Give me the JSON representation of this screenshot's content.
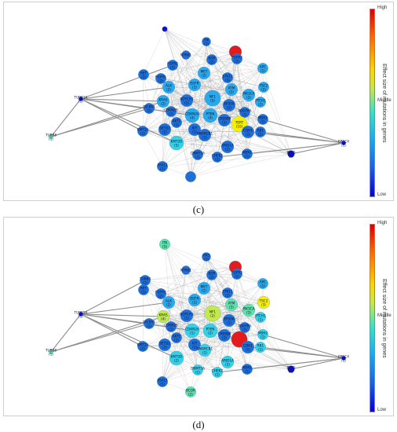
{
  "colors": {
    "blue": "#1f6fd8",
    "lightblue": "#2aa8ea",
    "cyan": "#35d0e6",
    "green": "#5ee0a8",
    "lime": "#c3ea4a",
    "yellow": "#f6f000",
    "red": "#e51a1a",
    "navy": "#1010c8",
    "edge": "#9a9a9a"
  },
  "colorbar": {
    "high_label": "High",
    "middle_label": "Middle",
    "low_label": "Low",
    "title": "Effect size of mutations in genes"
  },
  "panels": [
    {
      "label": "(c)",
      "nodes": [
        {
          "gene": "TUBB1A",
          "count": "(1)",
          "color": "navy",
          "size": 1.5
        },
        {
          "gene": "TUBB8",
          "count": "(1)",
          "color": "green",
          "size": 1.5
        },
        {
          "gene": "ERCC4",
          "count": "(1)",
          "color": "navy",
          "size": 1.5
        },
        {
          "gene": "",
          "count": "",
          "color": "navy",
          "size": 2
        },
        {
          "gene": "NTRK1",
          "count": "",
          "color": "blue",
          "size": 4
        },
        {
          "gene": "ITK",
          "count": "(1)",
          "color": "blue",
          "size": 4
        },
        {
          "gene": "KDR",
          "count": "(2)",
          "color": "blue",
          "size": 5
        },
        {
          "gene": "",
          "count": "",
          "color": "red",
          "size": 6
        },
        {
          "gene": "FGFR3",
          "count": "(2)",
          "color": "blue",
          "size": 5
        },
        {
          "gene": "APC",
          "count": "(1)",
          "color": "lightblue",
          "size": 5
        },
        {
          "gene": "FGFR2",
          "count": "(1)",
          "color": "blue",
          "size": 5
        },
        {
          "gene": "MET",
          "count": "(2)",
          "color": "lightblue",
          "size": 6
        },
        {
          "gene": "STK11",
          "count": "(1)",
          "color": "blue",
          "size": 5
        },
        {
          "gene": "TSC2",
          "count": "(2)",
          "color": "lightblue",
          "size": 5
        },
        {
          "gene": "RET",
          "count": "(1)",
          "color": "blue",
          "size": 5
        },
        {
          "gene": "FGFR1",
          "count": "(2)",
          "color": "blue",
          "size": 5
        },
        {
          "gene": "ALK",
          "count": "(2)",
          "color": "lightblue",
          "size": 6
        },
        {
          "gene": "EGFR",
          "count": "(1)",
          "color": "lightblue",
          "size": 6
        },
        {
          "gene": "ATM",
          "count": "(2)",
          "color": "lightblue",
          "size": 6
        },
        {
          "gene": "PIK3CA",
          "count": "(2)",
          "color": "lightblue",
          "size": 6
        },
        {
          "gene": "PTCH1",
          "count": "(2)",
          "color": "lightblue",
          "size": 5
        },
        {
          "gene": "KRAS",
          "count": "(2)",
          "color": "lightblue",
          "size": 6
        },
        {
          "gene": "NOTCH1",
          "count": "(1)",
          "color": "blue",
          "size": 6
        },
        {
          "gene": "NF1",
          "count": "(5)",
          "color": "lightblue",
          "size": 8
        },
        {
          "gene": "EP300",
          "count": "(1)",
          "color": "blue",
          "size": 6
        },
        {
          "gene": "CDKN2B",
          "count": "(1)",
          "color": "blue",
          "size": 5
        },
        {
          "gene": "PDGFRA",
          "count": "(1)",
          "color": "blue",
          "size": 5
        },
        {
          "gene": "DICER1",
          "count": "(1)",
          "color": "blue",
          "size": 5
        },
        {
          "gene": "AKT1",
          "count": "(1)",
          "color": "blue",
          "size": 5
        },
        {
          "gene": "CDKN2A",
          "count": "(4)",
          "color": "lightblue",
          "size": 7
        },
        {
          "gene": "PTEN",
          "count": "(4)",
          "color": "lightblue",
          "size": 7
        },
        {
          "gene": "TERT",
          "count": "(10)",
          "color": "yellow",
          "size": 8
        },
        {
          "gene": "MSH2",
          "count": "(1)",
          "color": "blue",
          "size": 5
        },
        {
          "gene": "SETD2",
          "count": "(2)",
          "color": "blue",
          "size": 6
        },
        {
          "gene": "KIT",
          "count": "(1)",
          "color": "blue",
          "size": 6
        },
        {
          "gene": "CREBBP",
          "count": "(1)",
          "color": "blue",
          "size": 6
        },
        {
          "gene": "CDH1",
          "count": "(1)",
          "color": "blue",
          "size": 6
        },
        {
          "gene": "RB1",
          "count": "(1)",
          "color": "blue",
          "size": 5
        },
        {
          "gene": "KMT2A",
          "count": "(1)",
          "color": "blue",
          "size": 5
        },
        {
          "gene": "SMARCB1",
          "count": "(1)",
          "color": "blue",
          "size": 6
        },
        {
          "gene": "KMT2D",
          "count": "(5)",
          "color": "cyan",
          "size": 7
        },
        {
          "gene": "ARID1A",
          "count": "(1)",
          "color": "blue",
          "size": 6
        },
        {
          "gene": "DNMT3A",
          "count": "(1)",
          "color": "blue",
          "size": 5
        },
        {
          "gene": "CHEK2",
          "count": "(2)",
          "color": "blue",
          "size": 5
        },
        {
          "gene": "MEN1",
          "count": "(1)",
          "color": "blue",
          "size": 5
        },
        {
          "gene": "PLCG",
          "count": "(2)",
          "color": "navy",
          "size": 3
        },
        {
          "gene": "ASXL1",
          "count": "(1)",
          "color": "blue",
          "size": 5
        },
        {
          "gene": "",
          "count": "",
          "color": "blue",
          "size": 5
        }
      ]
    },
    {
      "label": "(d)",
      "nodes": [
        {
          "gene": "TUBB1A",
          "count": "(1)",
          "color": "navy",
          "size": 1.5
        },
        {
          "gene": "TUBB8",
          "count": "(1)",
          "color": "green",
          "size": 1.5
        },
        {
          "gene": "ERCC4",
          "count": "(1)",
          "color": "navy",
          "size": 1.5
        },
        {
          "gene": "ITK",
          "count": "(5)",
          "color": "green",
          "size": 5
        },
        {
          "gene": "NTRK1",
          "count": "",
          "color": "blue",
          "size": 4
        },
        {
          "gene": "ITK1",
          "count": "(1)",
          "color": "blue",
          "size": 4
        },
        {
          "gene": "KDR",
          "count": "(2)",
          "color": "blue",
          "size": 5
        },
        {
          "gene": "",
          "count": "",
          "color": "red",
          "size": 6
        },
        {
          "gene": "FGFR3",
          "count": "(2)",
          "color": "blue",
          "size": 5
        },
        {
          "gene": "APC",
          "count": "(1)",
          "color": "lightblue",
          "size": 5
        },
        {
          "gene": "TUBB3",
          "count": "(1)",
          "color": "blue",
          "size": 5
        },
        {
          "gene": "MET",
          "count": "(2)",
          "color": "lightblue",
          "size": 6
        },
        {
          "gene": "STK11",
          "count": "(1)",
          "color": "blue",
          "size": 5
        },
        {
          "gene": "TSC2",
          "count": "(3)",
          "color": "yellow",
          "size": 6
        },
        {
          "gene": "RET",
          "count": "(1)",
          "color": "blue",
          "size": 5
        },
        {
          "gene": "FGFR1",
          "count": "(2)",
          "color": "blue",
          "size": 5
        },
        {
          "gene": "ALK",
          "count": "(2)",
          "color": "lightblue",
          "size": 6
        },
        {
          "gene": "EGFR",
          "count": "(1)",
          "color": "lightblue",
          "size": 6
        },
        {
          "gene": "ATM",
          "count": "(3)",
          "color": "green",
          "size": 6
        },
        {
          "gene": "PIK3CA",
          "count": "(3)",
          "color": "green",
          "size": 6
        },
        {
          "gene": "PTCH1",
          "count": "(1)",
          "color": "cyan",
          "size": 5
        },
        {
          "gene": "KRAS",
          "count": "(4)",
          "color": "lime",
          "size": 6
        },
        {
          "gene": "NOTCH1",
          "count": "(1)",
          "color": "blue",
          "size": 6
        },
        {
          "gene": "NF1",
          "count": "(2)",
          "color": "lime",
          "size": 8
        },
        {
          "gene": "EP300",
          "count": "(1)",
          "color": "blue",
          "size": 6
        },
        {
          "gene": "CDKN2B",
          "count": "(1)",
          "color": "blue",
          "size": 5
        },
        {
          "gene": "PDGFRA",
          "count": "(1)",
          "color": "blue",
          "size": 5
        },
        {
          "gene": "DICER1",
          "count": "(1)",
          "color": "blue",
          "size": 5
        },
        {
          "gene": "AKT1",
          "count": "(1)",
          "color": "blue",
          "size": 5
        },
        {
          "gene": "CDKN2A",
          "count": "(1)",
          "color": "cyan",
          "size": 7
        },
        {
          "gene": "PTEN",
          "count": "(2)",
          "color": "cyan",
          "size": 7
        },
        {
          "gene": "",
          "count": "",
          "color": "red",
          "size": 8
        },
        {
          "gene": "MSH2",
          "count": "(1)",
          "color": "cyan",
          "size": 5
        },
        {
          "gene": "SETD2",
          "count": "(2)",
          "color": "blue",
          "size": 6
        },
        {
          "gene": "KIT",
          "count": "(1)",
          "color": "blue",
          "size": 6
        },
        {
          "gene": "CREBBP",
          "count": "(1)",
          "color": "blue",
          "size": 6
        },
        {
          "gene": "CDH1",
          "count": "(1)",
          "color": "blue",
          "size": 6
        },
        {
          "gene": "RB1",
          "count": "(1)",
          "color": "cyan",
          "size": 5
        },
        {
          "gene": "KMT2A",
          "count": "(1)",
          "color": "blue",
          "size": 5
        },
        {
          "gene": "SMARCB1",
          "count": "(1)",
          "color": "cyan",
          "size": 6
        },
        {
          "gene": "KMT2D",
          "count": "(2)",
          "color": "cyan",
          "size": 7
        },
        {
          "gene": "ARID1A",
          "count": "(1)",
          "color": "cyan",
          "size": 6
        },
        {
          "gene": "DNMT3A",
          "count": "(1)",
          "color": "cyan",
          "size": 5
        },
        {
          "gene": "CHEK2",
          "count": "(1)",
          "color": "cyan",
          "size": 5
        },
        {
          "gene": "MEN1",
          "count": "(1)",
          "color": "blue",
          "size": 5
        },
        {
          "gene": "PLCG",
          "count": "(1)",
          "color": "navy",
          "size": 3
        },
        {
          "gene": "ASXL1",
          "count": "(1)",
          "color": "blue",
          "size": 5
        },
        {
          "gene": "BCOR",
          "count": "(2)",
          "color": "green",
          "size": 5
        }
      ]
    }
  ]
}
